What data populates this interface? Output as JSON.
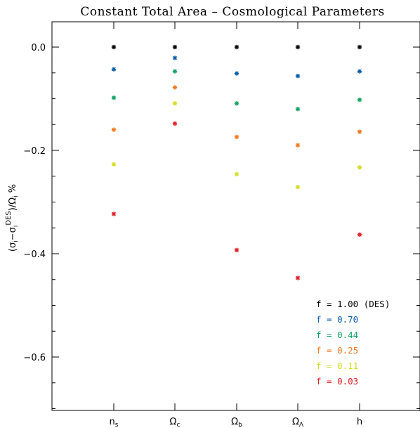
{
  "chart_data": {
    "type": "scatter",
    "title": "Constant Total Area – Cosmological Parameters",
    "ylabel": "(σi−σiDES)/Ωi %",
    "categories": [
      "ns",
      "Ωc",
      "Ωb",
      "ΩΛ",
      "h"
    ],
    "category_labels": [
      {
        "main": "n",
        "sub": "s"
      },
      {
        "main": "Ω",
        "sub": "c"
      },
      {
        "main": "Ω",
        "sub": "b"
      },
      {
        "main": "Ω",
        "sub": "Λ"
      },
      {
        "main": "h",
        "sub": ""
      }
    ],
    "ylim": [
      -0.7,
      0.05
    ],
    "yticks": [
      0.0,
      -0.2,
      -0.4,
      -0.6
    ],
    "ytick_labels": [
      "0.0",
      "−0.2",
      "−0.4",
      "−0.6"
    ],
    "legend_position": "bottom-right",
    "series": [
      {
        "name": "f = 1.00 (DES)",
        "color": "#000000",
        "values": [
          0.0,
          0.0,
          0.0,
          0.0,
          0.0
        ]
      },
      {
        "name": "f = 0.70",
        "color": "#0a5aa8",
        "values": [
          -0.043,
          -0.021,
          -0.051,
          -0.056,
          -0.047
        ]
      },
      {
        "name": "f = 0.44",
        "color": "#10a060",
        "values": [
          -0.098,
          -0.047,
          -0.109,
          -0.12,
          -0.102
        ]
      },
      {
        "name": "f = 0.25",
        "color": "#f07820",
        "values": [
          -0.16,
          -0.078,
          -0.174,
          -0.19,
          -0.164
        ]
      },
      {
        "name": "f = 0.11",
        "color": "#d4dc20",
        "values": [
          -0.227,
          -0.109,
          -0.246,
          -0.271,
          -0.233
        ]
      },
      {
        "name": "f = 0.03",
        "color": "#e01c24",
        "values": [
          -0.323,
          -0.148,
          -0.393,
          -0.447,
          -0.363
        ]
      }
    ]
  }
}
